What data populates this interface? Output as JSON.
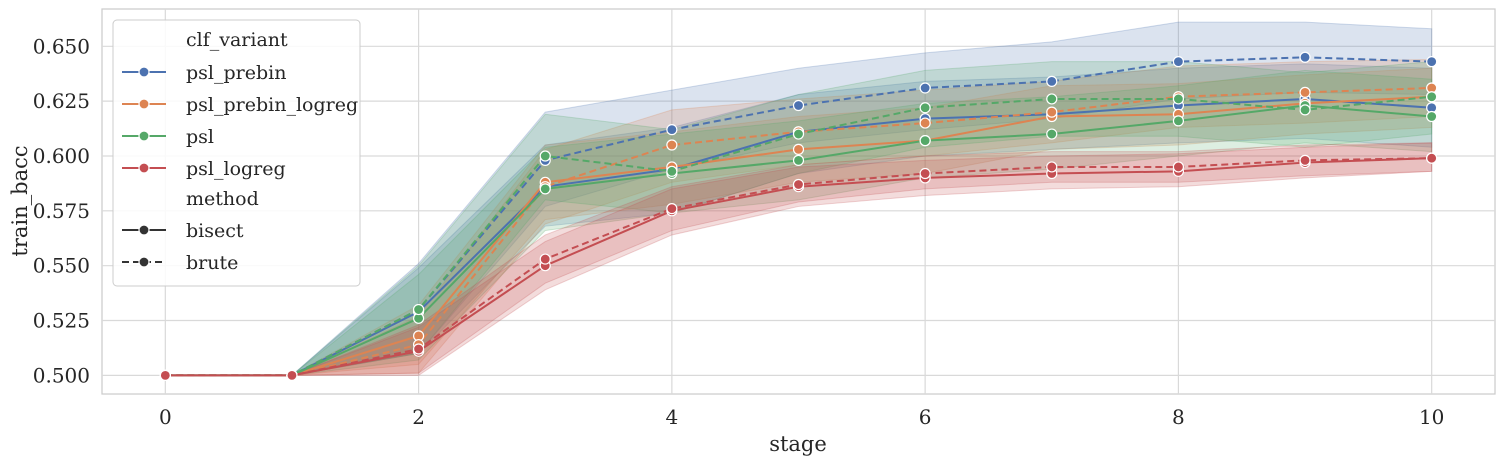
{
  "chart_data": {
    "type": "line",
    "xlabel": "stage",
    "ylabel": "train_bacc",
    "xlim": [
      -0.5,
      10.5
    ],
    "ylim": [
      0.4915,
      0.667
    ],
    "xticks": [
      0,
      2,
      4,
      6,
      8,
      10
    ],
    "yticks": [
      0.5,
      0.525,
      0.55,
      0.575,
      0.6,
      0.625,
      0.65
    ],
    "ytick_labels": [
      "0.500",
      "0.525",
      "0.550",
      "0.575",
      "0.600",
      "0.625",
      "0.650"
    ],
    "grid": true,
    "legend_placement": "upper-left",
    "legend": {
      "hue_title": "clf_variant",
      "style_title": "method",
      "style_entries": [
        {
          "label": "bisect",
          "dash": "solid"
        },
        {
          "label": "brute",
          "dash": "dashed"
        }
      ]
    },
    "x": [
      0,
      1,
      2,
      3,
      4,
      5,
      6,
      7,
      8,
      9,
      10
    ],
    "series": [
      {
        "name": "psl_prebin",
        "method": "bisect",
        "color": "#4c72b0",
        "values": [
          0.5,
          0.5,
          0.529,
          0.586,
          0.594,
          0.611,
          0.617,
          0.619,
          0.623,
          0.626,
          0.622
        ],
        "ci_lower": [
          0.5,
          0.5,
          0.51,
          0.568,
          0.574,
          0.592,
          0.6,
          0.603,
          0.606,
          0.608,
          0.604
        ],
        "ci_upper": [
          0.5,
          0.5,
          0.549,
          0.605,
          0.613,
          0.628,
          0.634,
          0.636,
          0.64,
          0.642,
          0.64
        ]
      },
      {
        "name": "psl_prebin",
        "method": "brute",
        "color": "#4c72b0",
        "values": [
          0.5,
          0.5,
          0.53,
          0.598,
          0.612,
          0.623,
          0.631,
          0.634,
          0.643,
          0.645,
          0.643
        ],
        "ci_lower": [
          0.5,
          0.5,
          0.51,
          0.577,
          0.594,
          0.606,
          0.612,
          0.617,
          0.626,
          0.629,
          0.628
        ],
        "ci_upper": [
          0.5,
          0.5,
          0.551,
          0.62,
          0.63,
          0.64,
          0.647,
          0.652,
          0.661,
          0.661,
          0.658
        ]
      },
      {
        "name": "psl_prebin_logreg",
        "method": "bisect",
        "color": "#dd8452",
        "values": [
          0.5,
          0.5,
          0.518,
          0.588,
          0.595,
          0.603,
          0.607,
          0.618,
          0.619,
          0.624,
          0.627
        ],
        "ci_lower": [
          0.5,
          0.5,
          0.505,
          0.571,
          0.578,
          0.588,
          0.592,
          0.603,
          0.605,
          0.61,
          0.613
        ],
        "ci_upper": [
          0.5,
          0.5,
          0.532,
          0.605,
          0.611,
          0.618,
          0.622,
          0.632,
          0.633,
          0.637,
          0.64
        ]
      },
      {
        "name": "psl_prebin_logreg",
        "method": "brute",
        "color": "#dd8452",
        "values": [
          0.5,
          0.5,
          0.514,
          0.586,
          0.605,
          0.611,
          0.615,
          0.62,
          0.627,
          0.629,
          0.631
        ],
        "ci_lower": [
          0.5,
          0.5,
          0.501,
          0.569,
          0.588,
          0.596,
          0.6,
          0.606,
          0.613,
          0.615,
          0.618
        ],
        "ci_upper": [
          0.5,
          0.5,
          0.527,
          0.603,
          0.621,
          0.626,
          0.63,
          0.634,
          0.641,
          0.643,
          0.644
        ]
      },
      {
        "name": "psl",
        "method": "bisect",
        "color": "#55a868",
        "values": [
          0.5,
          0.5,
          0.526,
          0.585,
          0.592,
          0.598,
          0.607,
          0.61,
          0.616,
          0.623,
          0.618
        ],
        "ci_lower": [
          0.5,
          0.5,
          0.507,
          0.566,
          0.574,
          0.58,
          0.59,
          0.594,
          0.6,
          0.606,
          0.602
        ],
        "ci_upper": [
          0.5,
          0.5,
          0.546,
          0.604,
          0.61,
          0.616,
          0.624,
          0.627,
          0.632,
          0.639,
          0.635
        ]
      },
      {
        "name": "psl",
        "method": "brute",
        "color": "#55a868",
        "values": [
          0.5,
          0.5,
          0.53,
          0.6,
          0.593,
          0.61,
          0.622,
          0.626,
          0.626,
          0.621,
          0.627
        ],
        "ci_lower": [
          0.5,
          0.5,
          0.51,
          0.58,
          0.574,
          0.592,
          0.604,
          0.609,
          0.609,
          0.604,
          0.61
        ],
        "ci_upper": [
          0.5,
          0.5,
          0.55,
          0.619,
          0.612,
          0.628,
          0.639,
          0.643,
          0.643,
          0.638,
          0.643
        ]
      },
      {
        "name": "psl_logreg",
        "method": "bisect",
        "color": "#c44e52",
        "values": [
          0.5,
          0.5,
          0.511,
          0.55,
          0.575,
          0.586,
          0.59,
          0.592,
          0.593,
          0.597,
          0.599
        ],
        "ci_lower": [
          0.5,
          0.5,
          0.5,
          0.539,
          0.564,
          0.577,
          0.582,
          0.585,
          0.586,
          0.59,
          0.593
        ],
        "ci_upper": [
          0.5,
          0.5,
          0.522,
          0.561,
          0.585,
          0.595,
          0.598,
          0.6,
          0.601,
          0.604,
          0.606
        ]
      },
      {
        "name": "psl_logreg",
        "method": "brute",
        "color": "#c44e52",
        "values": [
          0.5,
          0.5,
          0.512,
          0.553,
          0.576,
          0.587,
          0.592,
          0.595,
          0.595,
          0.598,
          0.599
        ],
        "ci_lower": [
          0.5,
          0.5,
          0.501,
          0.542,
          0.566,
          0.579,
          0.585,
          0.588,
          0.588,
          0.591,
          0.593
        ],
        "ci_upper": [
          0.5,
          0.5,
          0.523,
          0.564,
          0.586,
          0.596,
          0.6,
          0.602,
          0.602,
          0.605,
          0.606
        ]
      }
    ]
  }
}
